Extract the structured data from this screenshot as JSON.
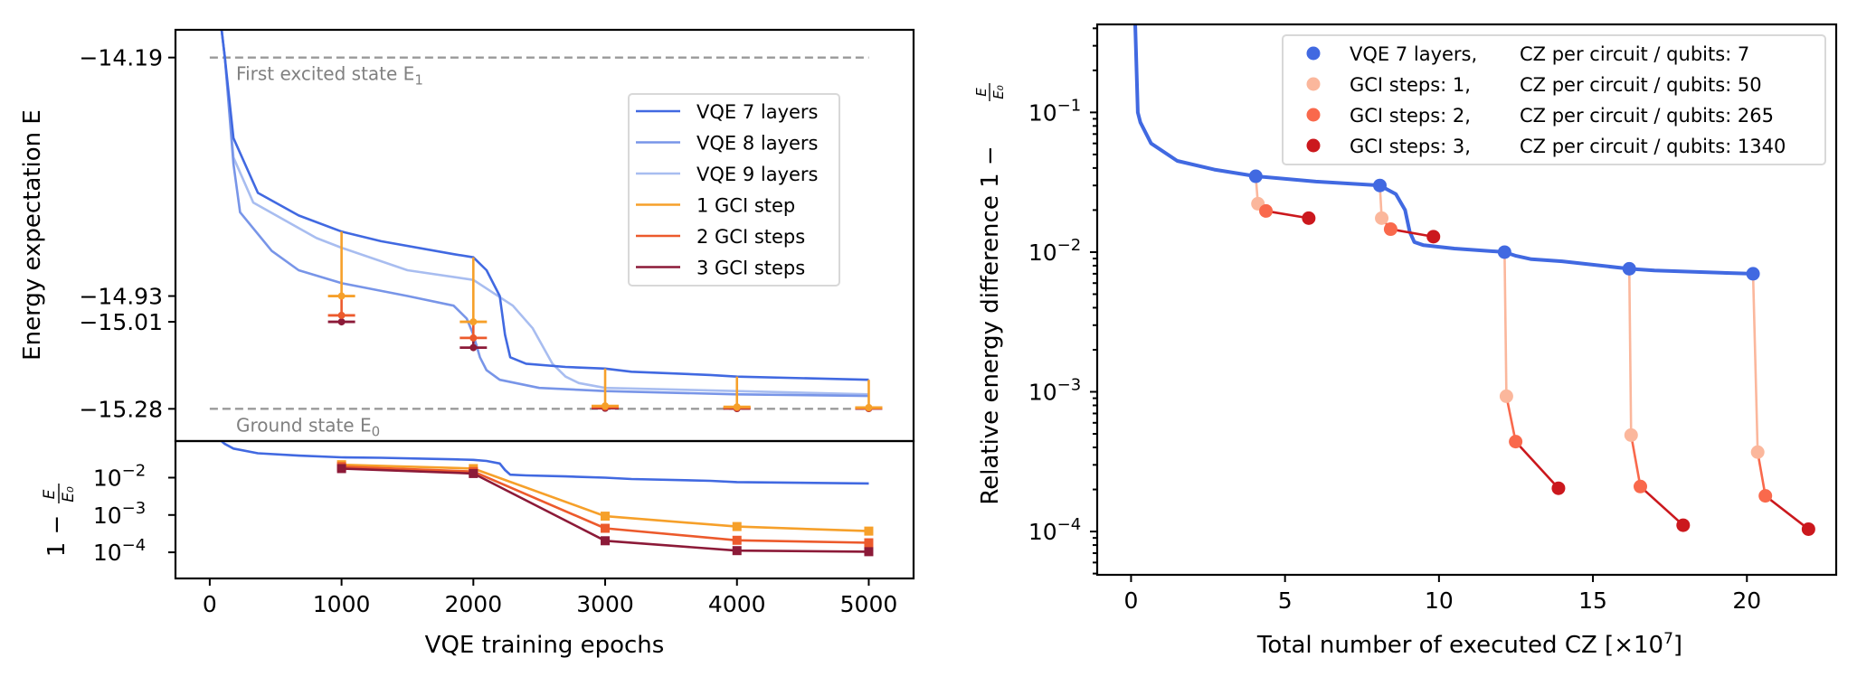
{
  "chart_data": [
    {
      "id": "energy",
      "type": "line",
      "ylabel": "Energy expectation E",
      "xlabel": "",
      "xlim": [
        -260,
        5340
      ],
      "ylim": [
        -15.38,
        -14.104
      ],
      "yticks": [
        -14.19,
        -14.93,
        -15.01,
        -15.28
      ],
      "ytick_labels": [
        "−14.19",
        "−14.93",
        "−15.01",
        "−15.28"
      ],
      "reference_lines": [
        {
          "name": "first-excited",
          "y": -14.19,
          "label": "First excited state E",
          "sub": "1",
          "color": "#999999"
        },
        {
          "name": "ground",
          "y": -15.28,
          "label": "Ground state E",
          "sub": "0",
          "color": "#999999"
        }
      ],
      "series": [
        {
          "name": "VQE 7 layers",
          "color": "#4169e1",
          "x": [
            90,
            115,
            180,
            365,
            675,
            1000,
            1300,
            1850,
            2000,
            2100,
            2200,
            2240,
            2280,
            2400,
            2700,
            3000,
            3200,
            3800,
            4000,
            5000
          ],
          "y": [
            -14.104,
            -14.19,
            -14.44,
            -14.61,
            -14.68,
            -14.73,
            -14.76,
            -14.8,
            -14.81,
            -14.85,
            -14.93,
            -15.05,
            -15.12,
            -15.14,
            -15.15,
            -15.155,
            -15.165,
            -15.175,
            -15.18,
            -15.19
          ]
        },
        {
          "name": "VQE 8 layers",
          "color": "#7895e8",
          "x": [
            90,
            115,
            180,
            230,
            470,
            675,
            1000,
            1500,
            1850,
            1950,
            2000,
            2050,
            2100,
            2200,
            2500,
            3000,
            4000,
            5000
          ],
          "y": [
            -14.104,
            -14.19,
            -14.52,
            -14.67,
            -14.79,
            -14.85,
            -14.89,
            -14.93,
            -14.96,
            -15.0,
            -15.05,
            -15.12,
            -15.16,
            -15.19,
            -15.215,
            -15.225,
            -15.235,
            -15.24
          ]
        },
        {
          "name": "VQE 9 layers",
          "color": "#a8bdf0",
          "x": [
            90,
            115,
            180,
            330,
            810,
            1000,
            1500,
            2000,
            2300,
            2450,
            2600,
            2700,
            2800,
            3000,
            4000,
            5000
          ],
          "y": [
            -14.104,
            -14.19,
            -14.5,
            -14.64,
            -14.75,
            -14.78,
            -14.85,
            -14.88,
            -14.96,
            -15.03,
            -15.14,
            -15.18,
            -15.2,
            -15.215,
            -15.225,
            -15.235
          ]
        }
      ],
      "gci": {
        "x": [
          1000,
          2000,
          3000,
          4000,
          5000
        ],
        "vqe7_energy": [
          -14.73,
          -14.81,
          -15.155,
          -15.18,
          -15.19
        ],
        "series": [
          {
            "name": "1 GCI step",
            "color": "#f6a02a",
            "y": [
              -14.93,
              -15.01,
              -15.271,
              -15.274,
              -15.276
            ]
          },
          {
            "name": "2 GCI steps",
            "color": "#ec5a2c",
            "y": [
              -14.99,
              -15.06,
              -15.275,
              -15.277,
              -15.278
            ]
          },
          {
            "name": "3 GCI steps",
            "color": "#8c1a38",
            "y": [
              -15.01,
              -15.09,
              -15.278,
              -15.279,
              -15.279
            ]
          }
        ]
      },
      "legend": {
        "placement": "center-right",
        "entries": [
          "VQE 7 layers",
          "VQE 8 layers",
          "VQE 9 layers",
          "1 GCI step",
          "2 GCI steps",
          "3 GCI steps"
        ]
      }
    },
    {
      "id": "relative-epochs",
      "type": "line",
      "xlabel": "VQE training epochs",
      "ylabel": "1 − E/E0",
      "yscale": "log",
      "xlim": [
        -260,
        5340
      ],
      "ylim_log10": [
        -4.7,
        -1.02
      ],
      "xticks": [
        0,
        1000,
        2000,
        3000,
        4000,
        5000
      ],
      "yticks_log10": [
        -2,
        -3,
        -4
      ],
      "series": [
        {
          "name": "VQE 7 layers",
          "color": "#4169e1",
          "x": [
            90,
            115,
            180,
            365,
            675,
            1000,
            1300,
            1850,
            2000,
            2100,
            2200,
            2240,
            2280,
            2400,
            2700,
            3000,
            3200,
            3800,
            4000,
            5000
          ],
          "y": [
            0.094,
            0.08,
            0.06,
            0.045,
            0.039,
            0.035,
            0.034,
            0.031,
            0.03,
            0.028,
            0.024,
            0.016,
            0.012,
            0.0115,
            0.0108,
            0.01,
            0.0092,
            0.0082,
            0.0076,
            0.007
          ]
        },
        {
          "name": "1 GCI step",
          "color": "#f6a02a",
          "x": [
            1000,
            2000,
            3000,
            4000,
            5000
          ],
          "y": [
            0.0222,
            0.0175,
            0.00093,
            0.00049,
            0.00037
          ]
        },
        {
          "name": "2 GCI steps",
          "color": "#ec5a2c",
          "x": [
            1000,
            2000,
            3000,
            4000,
            5000
          ],
          "y": [
            0.0197,
            0.0146,
            0.00044,
            0.00021,
            0.00018
          ]
        },
        {
          "name": "3 GCI steps",
          "color": "#8c1a38",
          "x": [
            1000,
            2000,
            3000,
            4000,
            5000
          ],
          "y": [
            0.0175,
            0.0129,
            0.000204,
            0.000111,
            0.000104
          ]
        }
      ]
    },
    {
      "id": "relative-cz",
      "type": "scatter",
      "xlabel": "Total number of executed CZ [×10",
      "xlabel_sup": "7",
      "xlabel_end": "]",
      "ylabel": "Relative energy difference 1 − E/E0",
      "yscale": "log",
      "xlim": [
        -1.1,
        22.9
      ],
      "ylim_log10": [
        -4.31,
        -0.37
      ],
      "xticks": [
        0,
        5,
        10,
        15,
        20
      ],
      "yticks_log10": [
        -1,
        -2,
        -3,
        -4
      ],
      "vqe_curve": {
        "color": "#4169e1",
        "x": [
          0.1,
          0.22,
          0.3,
          0.65,
          1.5,
          2.7,
          4.05,
          6,
          8.08,
          8.6,
          8.9,
          9.05,
          9.2,
          9.5,
          10.5,
          12.13,
          12.5,
          13,
          14,
          16.18,
          17,
          18.5,
          20.2
        ],
        "y": [
          0.8,
          0.1,
          0.085,
          0.06,
          0.045,
          0.039,
          0.0349,
          0.032,
          0.03,
          0.026,
          0.02,
          0.014,
          0.0118,
          0.0112,
          0.0106,
          0.01,
          0.0094,
          0.0089,
          0.0086,
          0.0076,
          0.0074,
          0.0072,
          0.007
        ]
      },
      "series": [
        {
          "name": "VQE 7 layers",
          "cz_per_circuit_per_qubit": 7,
          "color": "#4169e1",
          "x": [
            4.05,
            8.08,
            12.13,
            16.18,
            20.2
          ],
          "y": [
            0.0349,
            0.03,
            0.01,
            0.0076,
            0.007
          ]
        },
        {
          "name": "GCI steps: 1",
          "cz_per_circuit_per_qubit": 50,
          "color": "#fbb79c",
          "x": [
            4.12,
            8.14,
            12.19,
            16.24,
            20.35
          ],
          "y": [
            0.0222,
            0.0175,
            0.00093,
            0.00049,
            0.00037
          ]
        },
        {
          "name": "GCI steps: 2",
          "cz_per_circuit_per_qubit": 265,
          "color": "#f9694c",
          "x": [
            4.38,
            8.43,
            12.49,
            16.54,
            20.6
          ],
          "y": [
            0.0197,
            0.0146,
            0.00044,
            0.00021,
            0.00018
          ]
        },
        {
          "name": "GCI steps: 3",
          "cz_per_circuit_per_qubit": 1340,
          "color": "#cb181d",
          "x": [
            5.77,
            9.82,
            13.88,
            17.93,
            22.0
          ],
          "y": [
            0.0175,
            0.0129,
            0.000204,
            0.000111,
            0.000104
          ]
        }
      ],
      "legend": {
        "placement": "top-right",
        "entries": [
          {
            "a": "VQE 7 layers,",
            "b": "CZ per circuit / qubits: 7"
          },
          {
            "a": "GCI steps: 1,",
            "b": "CZ per circuit / qubits: 50"
          },
          {
            "a": "GCI steps: 2,",
            "b": "CZ per circuit / qubits: 265"
          },
          {
            "a": "GCI steps: 3,",
            "b": "CZ per circuit / qubits: 1340"
          }
        ]
      }
    }
  ]
}
